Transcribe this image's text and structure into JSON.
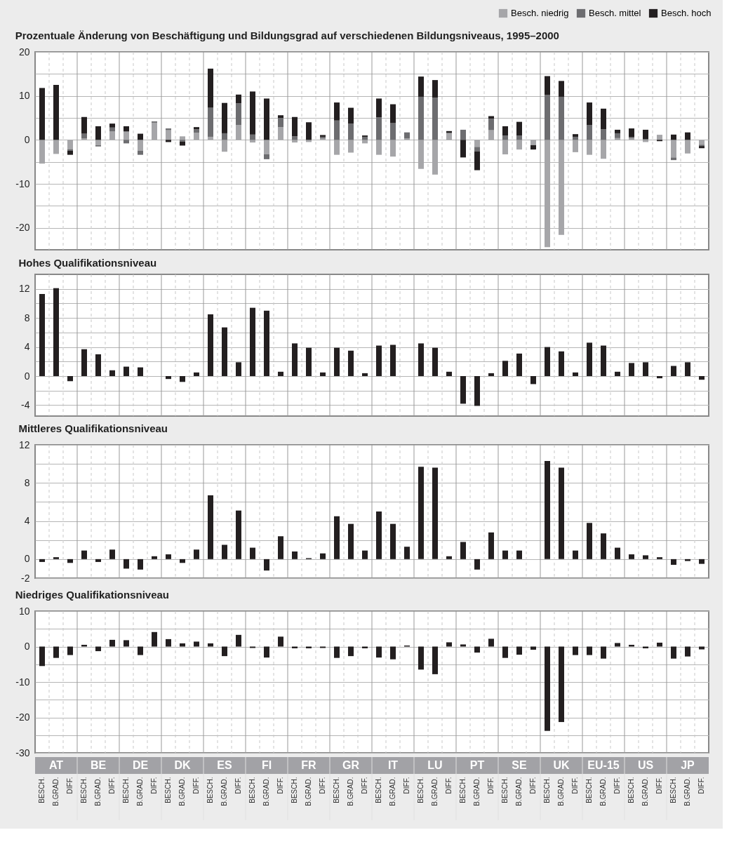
{
  "chart_data": [
    {
      "type": "bar",
      "title": "Prozentuale Änderung von Beschäftigung und Bildungsgrad auf verschiedenen Bildungsniveaus, 1995–2000",
      "stacked": true,
      "legend": "top right",
      "grid": true,
      "tick_labels": "y",
      "series": [
        {
          "name": "Besch. niedrig",
          "color": "#a6a6a9",
          "values": [
            -5.4,
            -3.2,
            -2.1,
            0.3,
            -1.2,
            1.9,
            1.9,
            -2.5,
            3.9,
            2.2,
            0.8,
            1.6,
            0.7,
            -2.7,
            3.4,
            -0.6,
            -3.3,
            2.9,
            -0.6,
            -0.5,
            0.3,
            -3.4,
            -2.9,
            -0.8,
            -3.4,
            -3.8,
            0.3,
            -6.6,
            -7.9,
            1.5,
            0,
            -1.6,
            2.2,
            -3.3,
            -2.2,
            -1.2,
            -24.4,
            -21.6,
            -2.8,
            -3.4,
            -4.3,
            0.4,
            0.4,
            -0.5,
            1.0,
            -4.0,
            -3.1,
            -1.1
          ]
        },
        {
          "name": "Besch. mittel",
          "color": "#6d6d70",
          "values": [
            0,
            0,
            -0.4,
            1.1,
            -0.3,
            0.9,
            -0.8,
            -0.9,
            0.3,
            0.4,
            -0.4,
            0.8,
            6.6,
            1.5,
            4.9,
            1.2,
            -1.1,
            2.1,
            0.8,
            null,
            0.4,
            4.4,
            3.7,
            0.7,
            5.1,
            3.8,
            1.4,
            9.8,
            9.6,
            0.1,
            2.3,
            -1.0,
            2.6,
            1.0,
            1.0,
            0,
            10.2,
            9.8,
            0.7,
            3.4,
            2.4,
            1.1,
            0.2,
            0.2,
            0.1,
            -0.6,
            0,
            -0.3
          ]
        },
        {
          "name": "Besch. hoch",
          "color": "#231f20",
          "values": [
            11.8,
            12.5,
            -0.9,
            3.8,
            3.1,
            0.9,
            1.2,
            1.4,
            0,
            -0.5,
            -0.9,
            0.5,
            8.9,
            6.9,
            2.0,
            9.8,
            9.4,
            0.6,
            4.4,
            4.0,
            0.4,
            4.1,
            3.6,
            0.3,
            4.3,
            4.3,
            0,
            4.6,
            4.0,
            0.4,
            -4.0,
            -4.3,
            0.6,
            2.1,
            3.1,
            -1.0,
            4.3,
            3.6,
            0.6,
            5.1,
            4.7,
            0.8,
            2.0,
            2.1,
            -0.3,
            1.2,
            1.7,
            -0.5
          ]
        }
      ],
      "ylim": [
        -25,
        20
      ],
      "yticks": [
        20,
        {
          "value": 15,
          "label": null
        },
        10,
        {
          "value": 5,
          "label": null
        },
        0,
        {
          "value": -5,
          "label": null
        },
        -10,
        {
          "value": -15,
          "label": null
        },
        -20
      ]
    },
    {
      "type": "bar",
      "title": "Hohes Qualifikationsniveau",
      "grid": true,
      "tick_labels": "y",
      "color": "#231f20",
      "values": [
        11.3,
        12.1,
        -0.7,
        3.7,
        3.0,
        0.8,
        1.3,
        1.2,
        0,
        -0.4,
        -0.8,
        0.5,
        8.5,
        6.7,
        1.9,
        9.4,
        9.0,
        0.6,
        4.5,
        3.9,
        0.5,
        3.9,
        3.5,
        0.4,
        4.2,
        4.3,
        0,
        4.5,
        3.9,
        0.6,
        -3.8,
        -4.1,
        0.4,
        2.1,
        3.1,
        -1.1,
        4.0,
        3.4,
        0.5,
        4.6,
        4.2,
        0.6,
        1.8,
        1.9,
        -0.3,
        1.4,
        1.9,
        -0.5
      ],
      "ylim": [
        -5.5,
        14
      ],
      "yticks": [
        12,
        {
          "value": 10,
          "label": null
        },
        8,
        {
          "value": 6,
          "label": null
        },
        4,
        {
          "value": 2,
          "label": null
        },
        0,
        {
          "value": -2,
          "label": null
        },
        -4
      ]
    },
    {
      "type": "bar",
      "title": "Mittleres Qualifikationsniveau",
      "grid": true,
      "tick_labels": "y",
      "color": "#231f20",
      "values": [
        -0.3,
        0.2,
        -0.4,
        0.9,
        -0.3,
        1.0,
        -1.0,
        -1.1,
        0.3,
        0.5,
        -0.4,
        1.0,
        6.7,
        1.5,
        5.1,
        1.2,
        -1.2,
        2.4,
        0.8,
        0.1,
        0.6,
        4.5,
        3.7,
        0.9,
        5.0,
        3.7,
        1.3,
        9.7,
        9.6,
        0.3,
        1.8,
        -1.1,
        2.8,
        0.9,
        0.9,
        0,
        10.3,
        9.6,
        0.9,
        3.8,
        2.7,
        1.2,
        0.5,
        0.4,
        0.2,
        -0.6,
        -0.2,
        -0.5
      ],
      "ylim": [
        -2,
        12
      ],
      "yticks": [
        12,
        {
          "value": 10,
          "label": null
        },
        8,
        {
          "value": 6,
          "label": null
        },
        4,
        {
          "value": 2,
          "label": null
        },
        0,
        -2
      ]
    },
    {
      "type": "bar",
      "title": "Niedriges Qualifikationsniveau",
      "grid": true,
      "color": "#231f20",
      "categories": [
        "BESCH.",
        "B.GRAD.",
        "DIFF.",
        "BESCH.",
        "B.GRAD.",
        "DIFF.",
        "BESCH.",
        "B.GRAD.",
        "DIFF.",
        "BESCH.",
        "B.GRAD.",
        "DIFF.",
        "BESCH.",
        "B.GRAD.",
        "DIFF.",
        "BESCH.",
        "B.GRAD.",
        "DIFF.",
        "BESCH.",
        "B.GRAD.",
        "DIFF.",
        "BESCH.",
        "B.GRAD.",
        "DIFF.",
        "BESCH.",
        "B.GRAD.",
        "DIFF.",
        "BESCH.",
        "B.GRAD.",
        "DIFF.",
        "BESCH.",
        "B.GRAD.",
        "DIFF.",
        "BESCH.",
        "B.GRAD.",
        "DIFF.",
        "BESCH.",
        "B.GRAD.",
        "DIFF.",
        "BESCH.",
        "B.GRAD.",
        "DIFF.",
        "BESCH.",
        "B.GRAD.",
        "DIFF.",
        "BESCH.",
        "B.GRAD.",
        "DIFF."
      ],
      "values": [
        -5.5,
        -3.2,
        -2.4,
        0.5,
        -1.3,
        1.9,
        1.8,
        -2.4,
        4.1,
        2.1,
        0.9,
        1.4,
        0.9,
        -2.7,
        3.3,
        -0.4,
        -3.1,
        2.8,
        -0.5,
        -0.5,
        -0.4,
        -3.2,
        -2.7,
        -0.5,
        -3.1,
        -3.6,
        0.3,
        -6.5,
        -7.8,
        1.2,
        0.6,
        -1.7,
        2.2,
        -3.2,
        -2.3,
        -0.9,
        -23.8,
        -21.3,
        -2.4,
        -2.4,
        -3.4,
        1.0,
        0.5,
        -0.5,
        1.1,
        -3.4,
        -2.8,
        -0.8
      ],
      "ylim": [
        -30,
        10
      ],
      "yticks": [
        10,
        {
          "value": 5,
          "label": null
        },
        0,
        {
          "value": -5,
          "label": null
        },
        -10,
        {
          "value": -15,
          "label": null
        },
        -20,
        {
          "value": -25,
          "label": null
        },
        -30
      ],
      "annotations": [
        "AT",
        "BE",
        "DE",
        "DK",
        "ES",
        "FI",
        "FR",
        "GR",
        "IT",
        "LU",
        "PT",
        "SE",
        "UK",
        "EU-15",
        "US",
        "JP"
      ]
    }
  ]
}
